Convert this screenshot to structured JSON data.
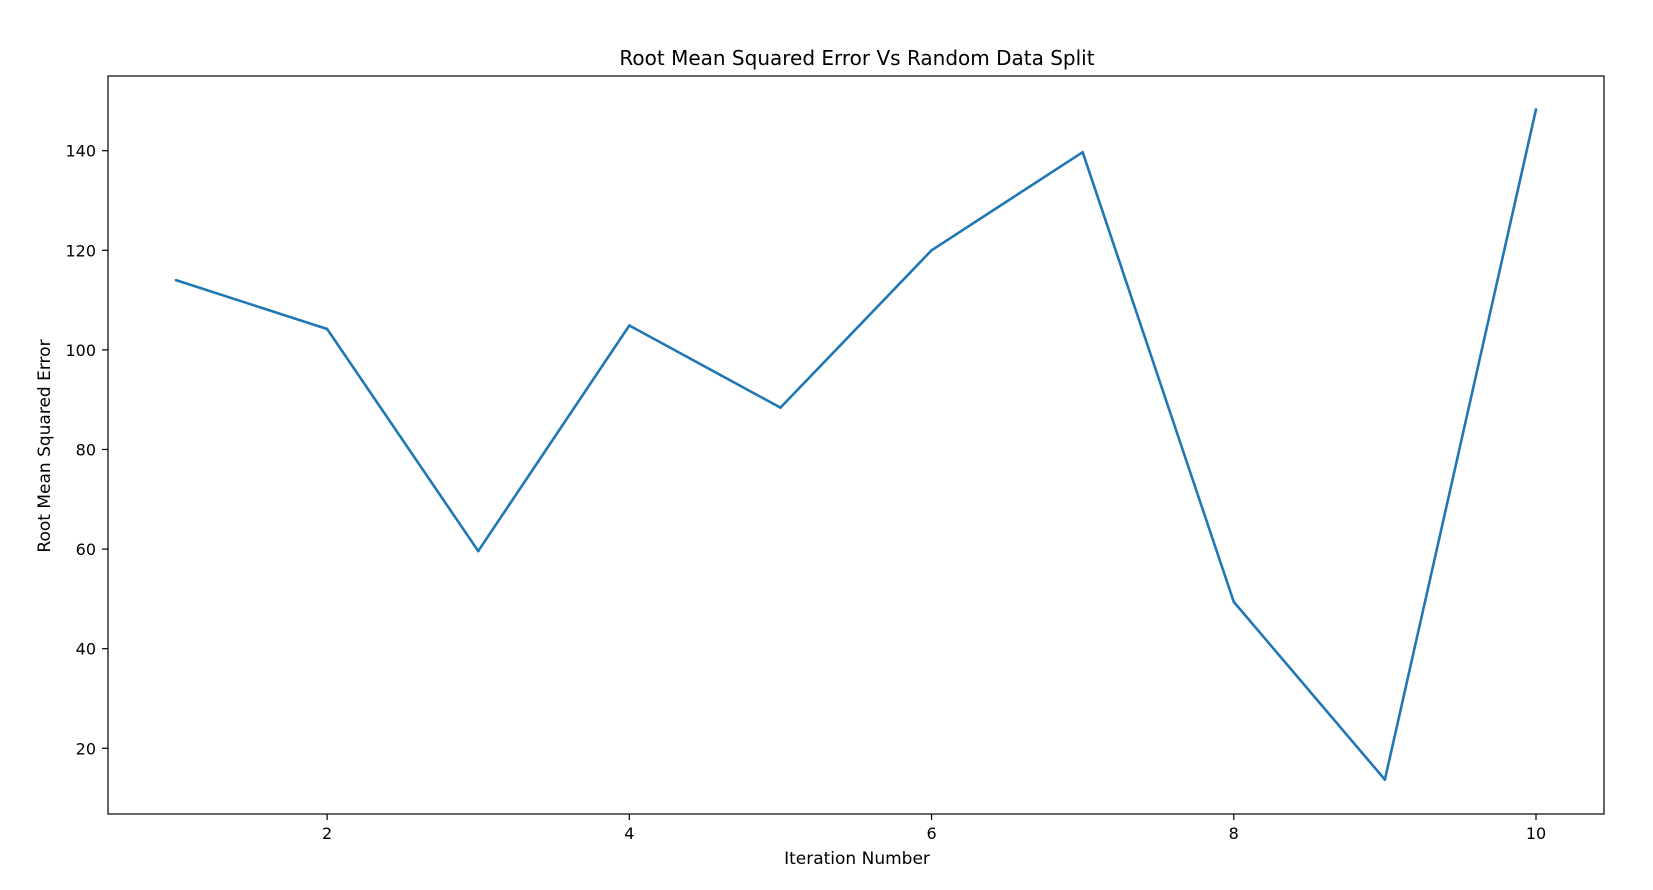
{
  "chart_data": {
    "type": "line",
    "title": "Root Mean Squared Error Vs Random Data Split",
    "xlabel": "Iteration Number",
    "ylabel": "Root Mean Squared Error",
    "xlim": [
      0.55,
      10.45
    ],
    "ylim": [
      6.8,
      155.0
    ],
    "x_ticks": [
      2,
      4,
      6,
      8,
      10
    ],
    "y_ticks": [
      20,
      40,
      60,
      80,
      100,
      120,
      140
    ],
    "grid": false,
    "legend": "none",
    "line_color": "#1f77b4",
    "series": [
      {
        "x": [
          1,
          2,
          3,
          4,
          5,
          6,
          7,
          8,
          9,
          10
        ],
        "values": [
          114.0,
          104.2,
          59.6,
          104.9,
          88.4,
          120.0,
          139.7,
          49.4,
          13.7,
          148.3
        ]
      }
    ]
  }
}
